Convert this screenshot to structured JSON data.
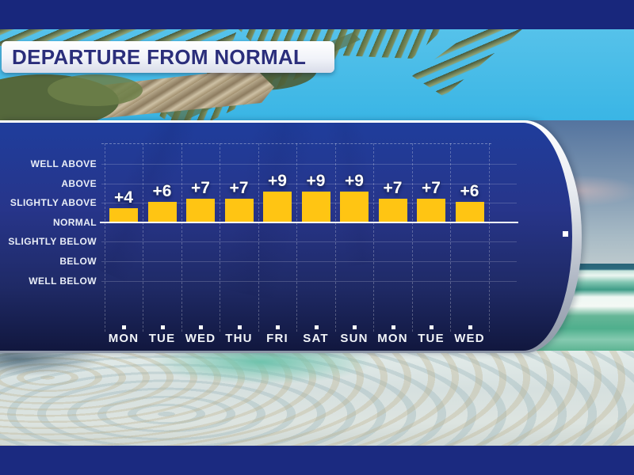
{
  "header": {
    "title": "DEPARTURE FROM NORMAL"
  },
  "chart_data": {
    "type": "bar",
    "title": "DEPARTURE FROM NORMAL",
    "categories": [
      "MON",
      "TUE",
      "WED",
      "THU",
      "FRI",
      "SAT",
      "SUN",
      "MON",
      "TUE",
      "WED"
    ],
    "values": [
      4,
      6,
      7,
      7,
      9,
      9,
      9,
      7,
      7,
      6
    ],
    "value_labels": [
      "+4",
      "+6",
      "+7",
      "+7",
      "+9",
      "+9",
      "+9",
      "+7",
      "+7",
      "+6"
    ],
    "y_axis_labels": [
      "WELL ABOVE",
      "ABOVE",
      "SLIGHTLY ABOVE",
      "NORMAL",
      "SLIGHTLY BELOW",
      "BELOW",
      "WELL BELOW"
    ],
    "baseline_label": "NORMAL",
    "xlabel": "",
    "ylabel": "",
    "legend": "none",
    "grid": true,
    "bar_color": "#ffc513",
    "panel_color": "#24348c",
    "baseline_color": "#ffffff",
    "text_color": "#ffffff"
  },
  "scene": {
    "background": "tropical beach photo with palm tree, sky and surf",
    "accent_navy": "#18277c",
    "banner_text_color": "#2b2e7b"
  }
}
